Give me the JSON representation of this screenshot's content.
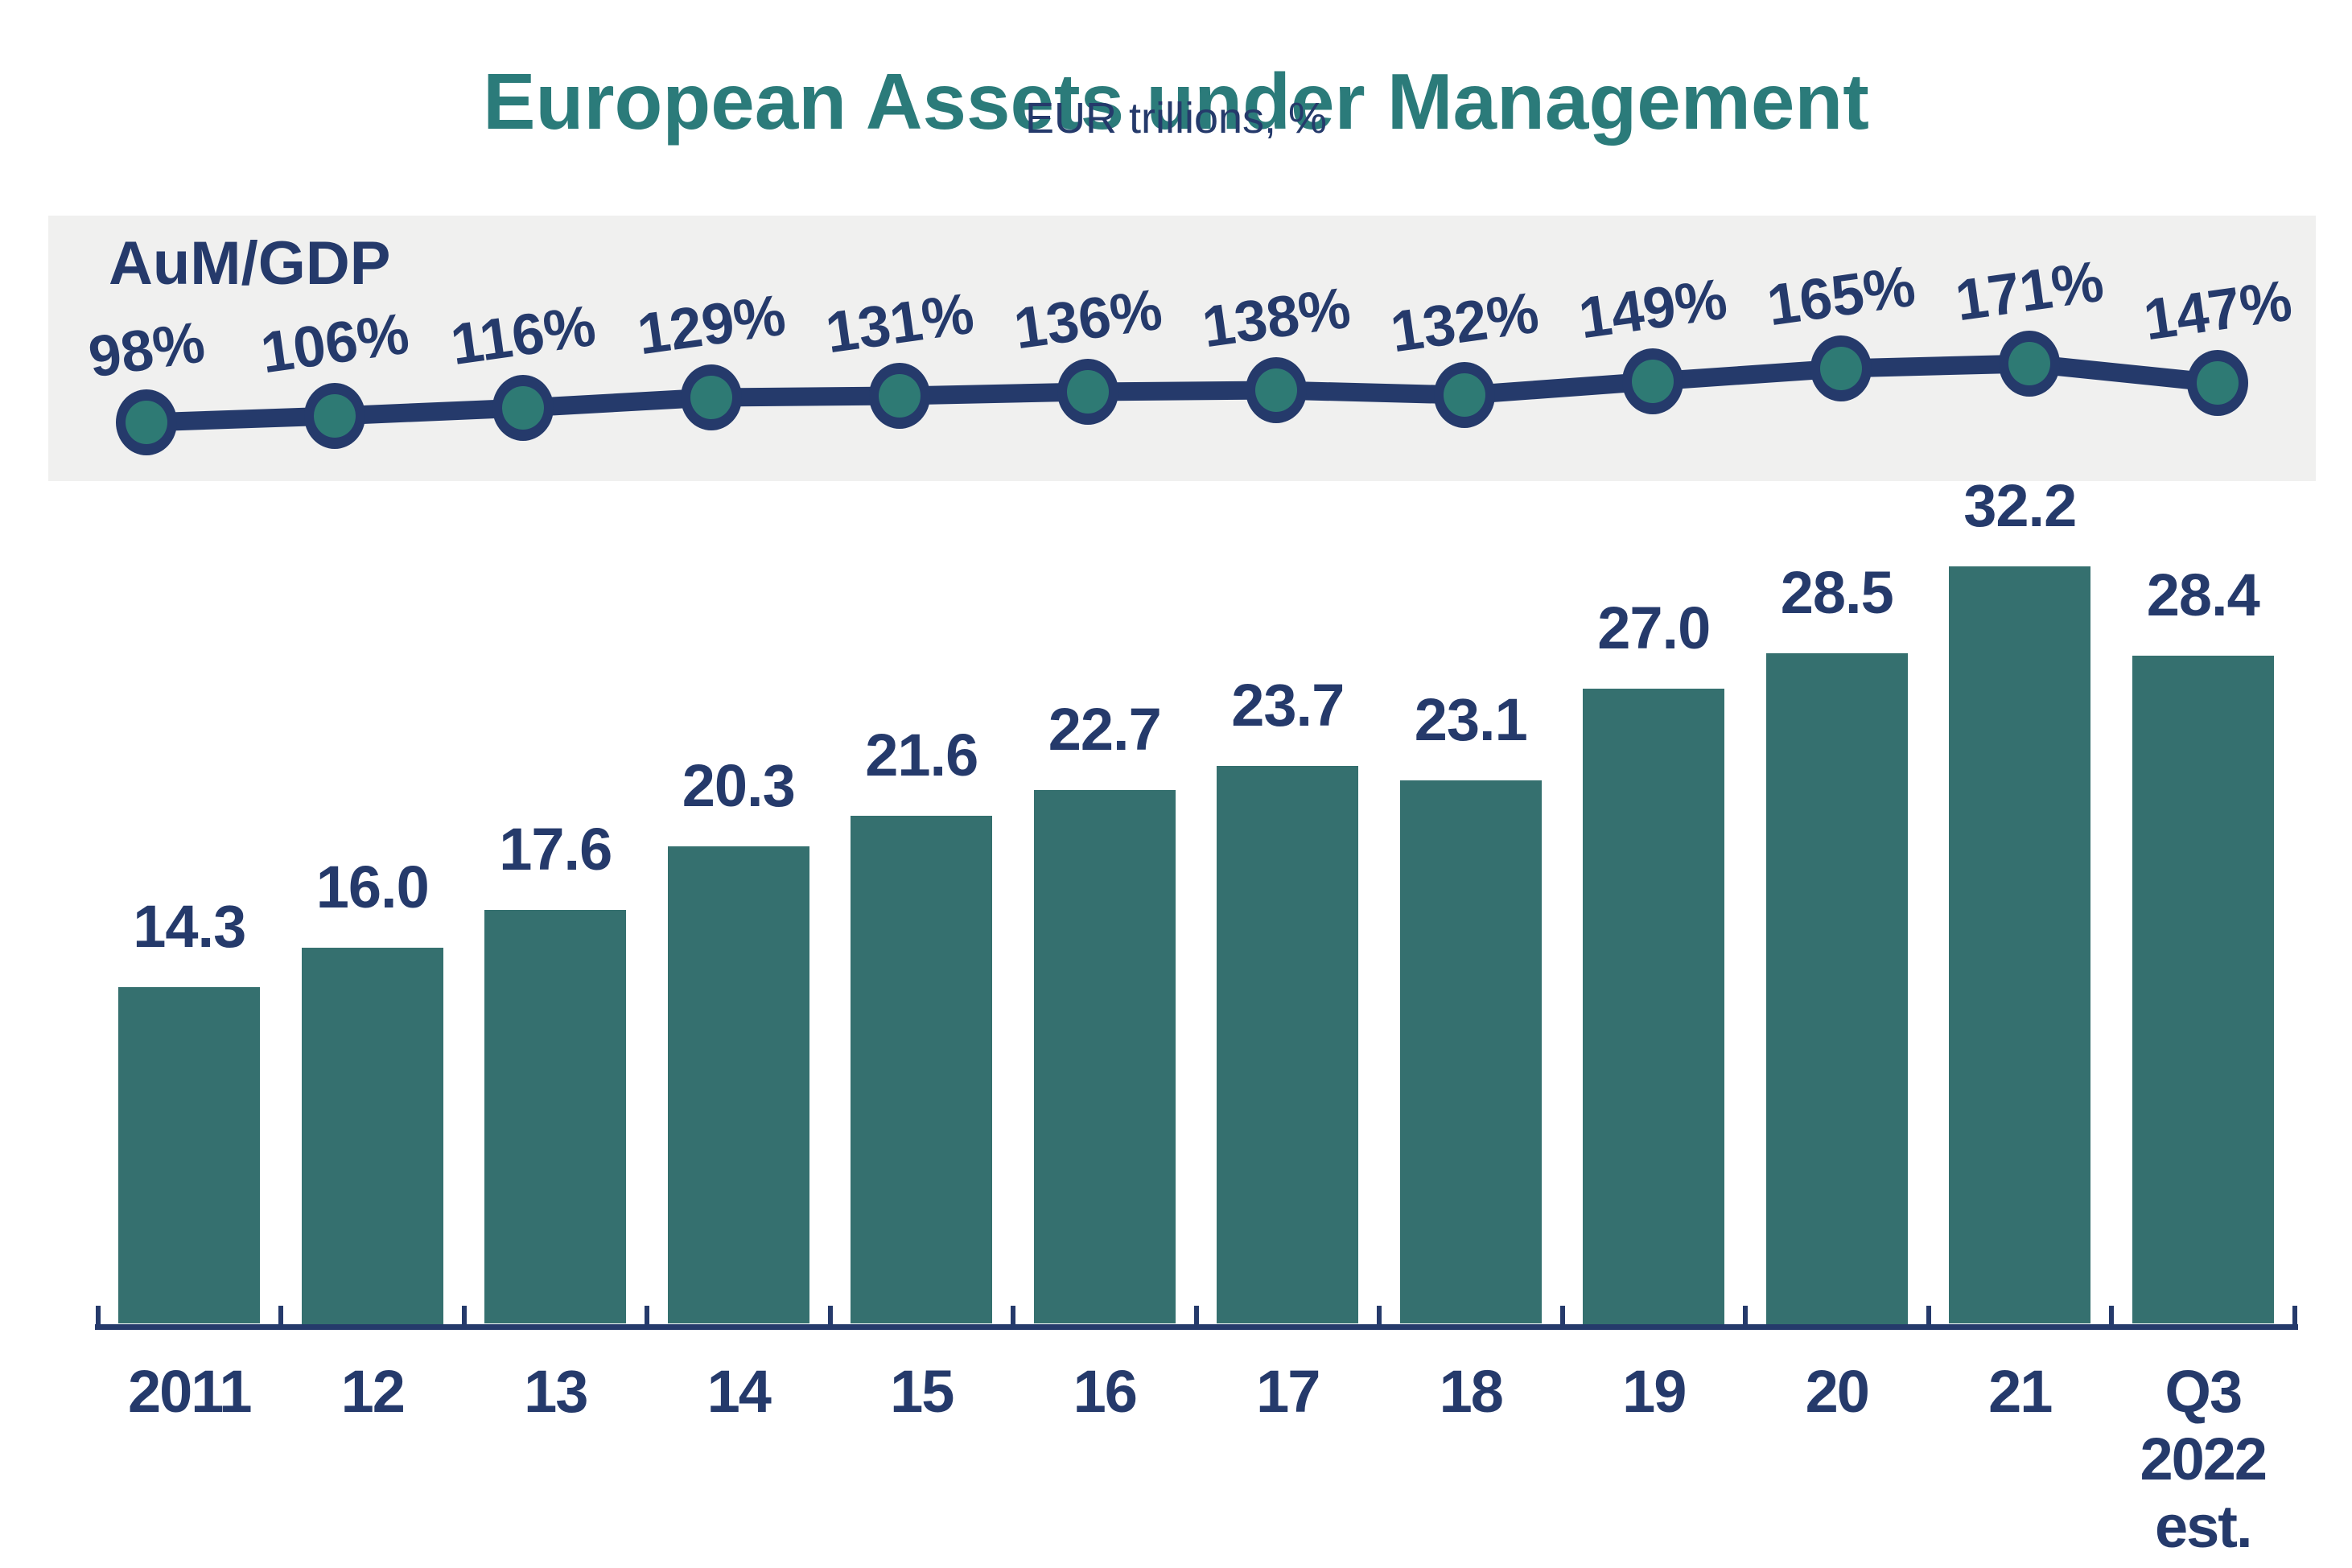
{
  "header": {
    "title": "European Assets under Management",
    "subtitle": "EUR trillions, %"
  },
  "chart_data": {
    "type": "combo",
    "categories": [
      "2011",
      "12",
      "13",
      "14",
      "15",
      "16",
      "17",
      "18",
      "19",
      "20",
      "21",
      "Q3 2022 est."
    ],
    "last_category_lines": [
      "Q3",
      "2022",
      "est."
    ],
    "series": [
      {
        "name": "AuM (EUR trillions)",
        "type": "bar",
        "values": [
          14.3,
          16.0,
          17.6,
          20.3,
          21.6,
          22.7,
          23.7,
          23.1,
          27.0,
          28.5,
          32.2,
          28.4
        ],
        "labels": [
          "14.3",
          "16.0",
          "17.6",
          "20.3",
          "21.6",
          "22.7",
          "23.7",
          "23.1",
          "27.0",
          "28.5",
          "32.2",
          "28.4"
        ]
      },
      {
        "name": "AuM/GDP",
        "type": "line",
        "values": [
          98,
          106,
          116,
          129,
          131,
          136,
          138,
          132,
          149,
          165,
          171,
          147
        ],
        "labels": [
          "98%",
          "106%",
          "116%",
          "129%",
          "131%",
          "136%",
          "138%",
          "132%",
          "149%",
          "165%",
          "171%",
          "147%"
        ]
      }
    ],
    "line_series_title": "AuM/GDP",
    "bar_axis_min": 0,
    "grid": false,
    "legend_position": "none",
    "value_labels_shown": true
  },
  "colors": {
    "title_teal": "#2B7B7A",
    "bar_teal": "#35706F",
    "marker_teal": "#2E7A74",
    "navy": "#253A6B",
    "band_gray": "#F0F0EF",
    "background": "#FFFFFF"
  }
}
